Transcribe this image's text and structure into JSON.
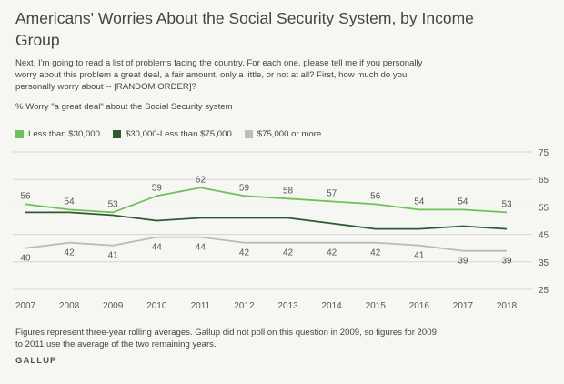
{
  "title": "Americans' Worries About the Social Security System, by Income Group",
  "question": "Next, I'm going to read a list of problems facing the country. For each one, please tell me if you personally worry about this problem a great deal, a fair amount, only a little, or not at all? First, how much do you personally worry about -- [RANDOM ORDER]?",
  "subtitle": "% Worry \"a great deal\" about the Social Security system",
  "footnote": "Figures represent three-year rolling averages. Gallup did not poll on this question in 2009, so figures for 2009 to 2011 use the average of the two remaining years.",
  "source": "GALLUP",
  "chart_data": {
    "type": "line",
    "x": [
      2007,
      2008,
      2009,
      2010,
      2011,
      2012,
      2013,
      2014,
      2015,
      2016,
      2017,
      2018
    ],
    "ylim": [
      25,
      75
    ],
    "yticks": [
      25,
      35,
      45,
      55,
      65,
      75
    ],
    "grid": true,
    "legend_position": "top-left",
    "series": [
      {
        "name": "Less than $30,000",
        "color": "#70c15b",
        "labeled": true,
        "values": [
          56,
          54,
          53,
          59,
          62,
          59,
          58,
          57,
          56,
          54,
          54,
          53
        ]
      },
      {
        "name": "$30,000-Less than $75,000",
        "color": "#2e5b30",
        "labeled": false,
        "values": [
          53,
          53,
          52,
          50,
          51,
          51,
          51,
          49,
          47,
          47,
          48,
          47
        ]
      },
      {
        "name": "$75,000 or more",
        "color": "#bcbcbc",
        "labeled": true,
        "values": [
          40,
          42,
          41,
          44,
          44,
          42,
          42,
          42,
          42,
          41,
          39,
          39
        ]
      }
    ]
  }
}
